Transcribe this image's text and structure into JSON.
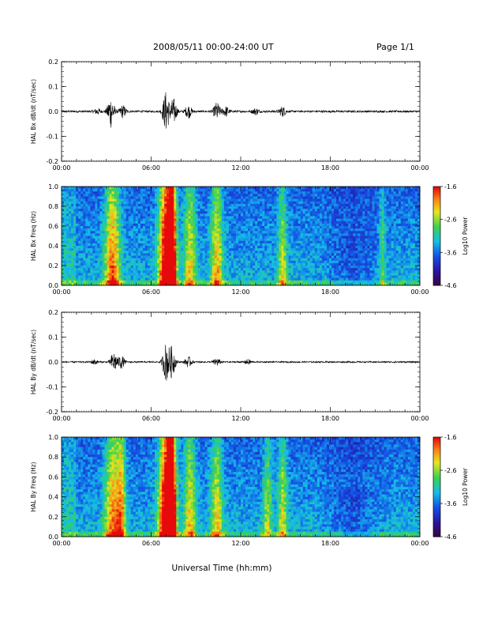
{
  "header": {
    "title": "2008/05/11  00:00-24:00 UT",
    "page": "Page 1/1"
  },
  "xlabel": "Universal Time (hh:mm)",
  "chart_data": [
    {
      "type": "line",
      "ylabel": "HAL Bx dB/dt (nT/sec)",
      "xlim": [
        "00:00",
        "24:00"
      ],
      "ylim": [
        -0.2,
        0.2
      ],
      "x_ticks": [
        "00:00",
        "06:00",
        "12:00",
        "18:00",
        "00:00"
      ],
      "y_ticks": [
        "0.2",
        "0.1",
        "0.0",
        "-0.1",
        "-0.2"
      ],
      "grid": false,
      "bursts": [
        {
          "center_h": 2.4,
          "amplitude": 0.012
        },
        {
          "center_h": 3.3,
          "amplitude": 0.065
        },
        {
          "center_h": 4.1,
          "amplitude": 0.025
        },
        {
          "center_h": 7.0,
          "amplitude": 0.08
        },
        {
          "center_h": 7.5,
          "amplitude": 0.05
        },
        {
          "center_h": 8.5,
          "amplitude": 0.025
        },
        {
          "center_h": 10.4,
          "amplitude": 0.035
        },
        {
          "center_h": 11.0,
          "amplitude": 0.02
        },
        {
          "center_h": 13.0,
          "amplitude": 0.012
        },
        {
          "center_h": 14.8,
          "amplitude": 0.02
        }
      ],
      "baseline_noise": 0.004
    },
    {
      "type": "heatmap",
      "ylabel": "HAL Bx Freq (Hz)",
      "xlim": [
        "00:00",
        "24:00"
      ],
      "ylim": [
        0.0,
        1.0
      ],
      "x_ticks": [
        "00:00",
        "06:00",
        "12:00",
        "18:00",
        "00:00"
      ],
      "y_ticks": [
        "1.0",
        "0.8",
        "0.6",
        "0.4",
        "0.2",
        "0.0"
      ],
      "colorbar": {
        "label": "Log10 Power",
        "ticks": [
          "-1.6",
          "-2.6",
          "-3.6",
          "-4.6"
        ],
        "range": [
          -4.6,
          -1.6
        ]
      },
      "activity_bands": [
        {
          "center_h": 3.4,
          "width_h": 0.5,
          "level": 0.55
        },
        {
          "center_h": 7.0,
          "width_h": 0.5,
          "level": 0.8
        },
        {
          "center_h": 7.4,
          "width_h": 0.3,
          "level": 0.75
        },
        {
          "center_h": 8.6,
          "width_h": 0.4,
          "level": 0.4
        },
        {
          "center_h": 10.4,
          "width_h": 0.4,
          "level": 0.45
        },
        {
          "center_h": 14.8,
          "width_h": 0.3,
          "level": 0.35
        },
        {
          "center_h": 21.5,
          "width_h": 0.2,
          "level": 0.25
        }
      ]
    },
    {
      "type": "line",
      "ylabel": "HAL By dB/dt (nT/sec)",
      "xlim": [
        "00:00",
        "24:00"
      ],
      "ylim": [
        -0.2,
        0.2
      ],
      "x_ticks": [
        "00:00",
        "06:00",
        "12:00",
        "18:00",
        "00:00"
      ],
      "y_ticks": [
        "0.2",
        "0.1",
        "0.0",
        "-0.1",
        "-0.2"
      ],
      "grid": false,
      "bursts": [
        {
          "center_h": 2.2,
          "amplitude": 0.01
        },
        {
          "center_h": 3.5,
          "amplitude": 0.04
        },
        {
          "center_h": 4.0,
          "amplitude": 0.025
        },
        {
          "center_h": 7.0,
          "amplitude": 0.075
        },
        {
          "center_h": 7.4,
          "amplitude": 0.06
        },
        {
          "center_h": 8.5,
          "amplitude": 0.02
        },
        {
          "center_h": 10.4,
          "amplitude": 0.015
        },
        {
          "center_h": 12.5,
          "amplitude": 0.01
        }
      ],
      "baseline_noise": 0.003
    },
    {
      "type": "heatmap",
      "ylabel": "HAL By Freq (Hz)",
      "xlim": [
        "00:00",
        "24:00"
      ],
      "ylim": [
        0.0,
        1.0
      ],
      "x_ticks": [
        "00:00",
        "06:00",
        "12:00",
        "18:00",
        "00:00"
      ],
      "y_ticks": [
        "1.0",
        "0.8",
        "0.6",
        "0.4",
        "0.2",
        "0.0"
      ],
      "colorbar": {
        "label": "Log10 Power",
        "ticks": [
          "-1.6",
          "-2.6",
          "-3.6",
          "-4.6"
        ],
        "range": [
          -4.6,
          -1.6
        ]
      },
      "activity_bands": [
        {
          "center_h": 3.4,
          "width_h": 0.5,
          "level": 0.5
        },
        {
          "center_h": 4.0,
          "width_h": 0.3,
          "level": 0.45
        },
        {
          "center_h": 7.0,
          "width_h": 0.5,
          "level": 0.8
        },
        {
          "center_h": 7.4,
          "width_h": 0.3,
          "level": 0.75
        },
        {
          "center_h": 8.6,
          "width_h": 0.4,
          "level": 0.4
        },
        {
          "center_h": 10.4,
          "width_h": 0.4,
          "level": 0.4
        },
        {
          "center_h": 13.8,
          "width_h": 0.3,
          "level": 0.3
        },
        {
          "center_h": 14.8,
          "width_h": 0.3,
          "level": 0.35
        }
      ]
    }
  ]
}
